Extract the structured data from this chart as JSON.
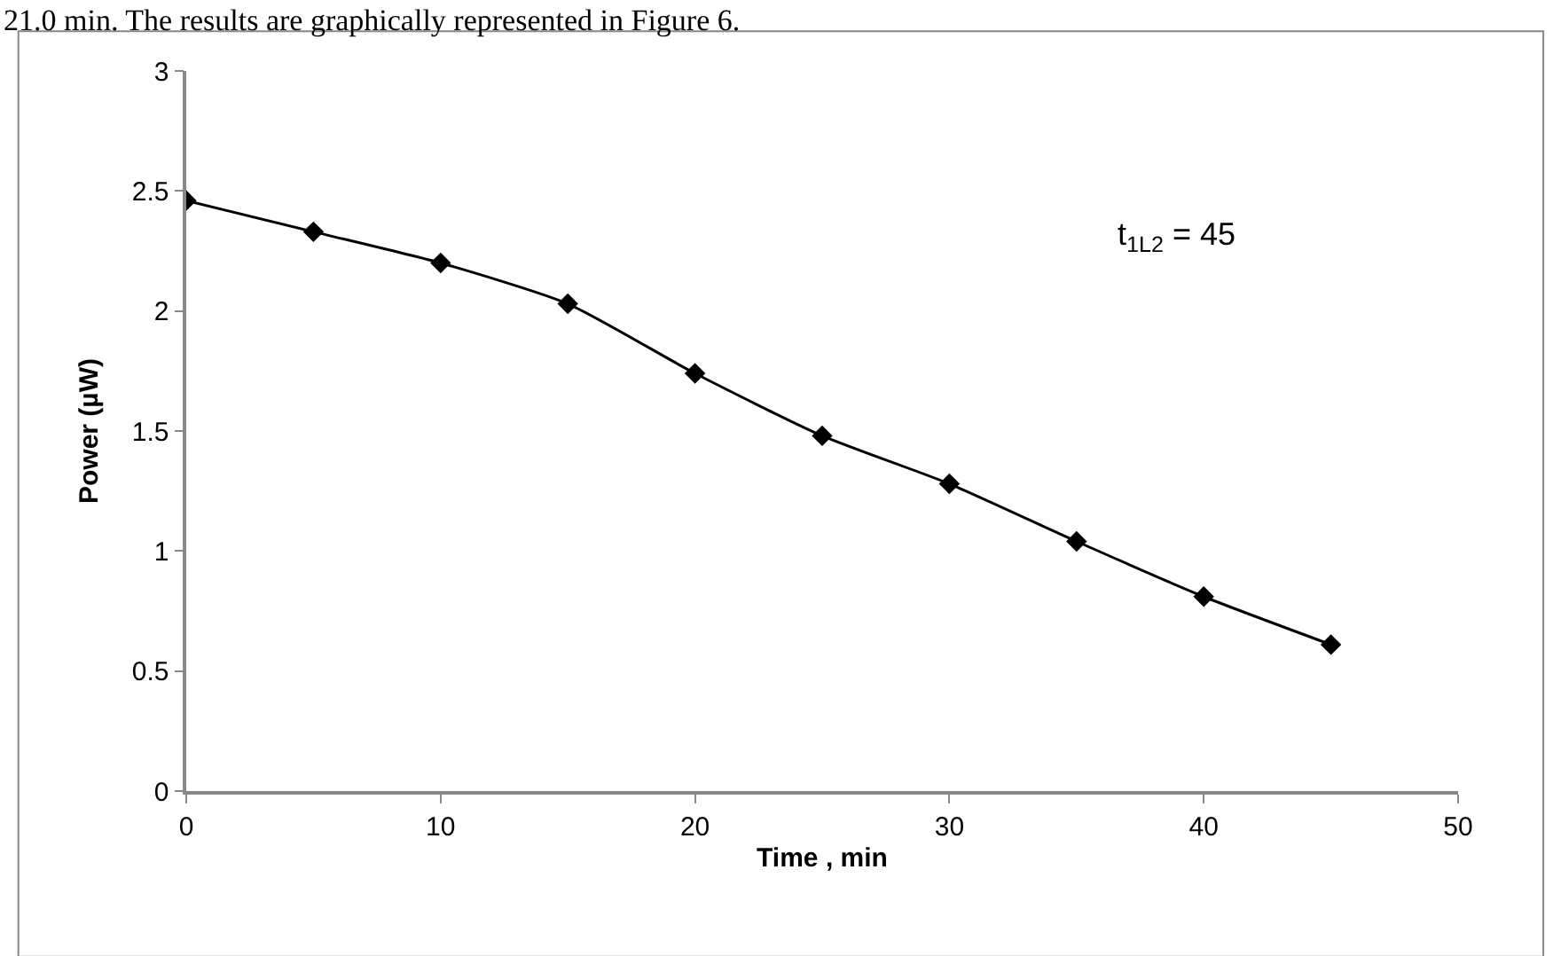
{
  "chart_data": {
    "type": "line",
    "xlabel": "Time , min",
    "ylabel": "Power (µW)",
    "x": [
      0,
      5,
      10,
      15,
      20,
      25,
      30,
      35,
      40,
      45
    ],
    "series": [
      {
        "color": "#000000",
        "values": [
          2.46,
          2.33,
          2.2,
          2.03,
          1.74,
          1.48,
          1.28,
          1.04,
          0.81,
          0.61
        ]
      }
    ],
    "xlim": [
      0,
      50
    ],
    "xticks": [
      0,
      10,
      20,
      30,
      40,
      50
    ],
    "ylim": [
      0,
      3
    ],
    "yticks": [
      0,
      0.5,
      1,
      1.5,
      2,
      2.5,
      3
    ],
    "marker": "diamond",
    "line_style": "solid",
    "annotations": [
      "21.0 min. The results are graphically represented in Figure 6.",
      "t$_{1L2}$ = 45"
    ]
  }
}
